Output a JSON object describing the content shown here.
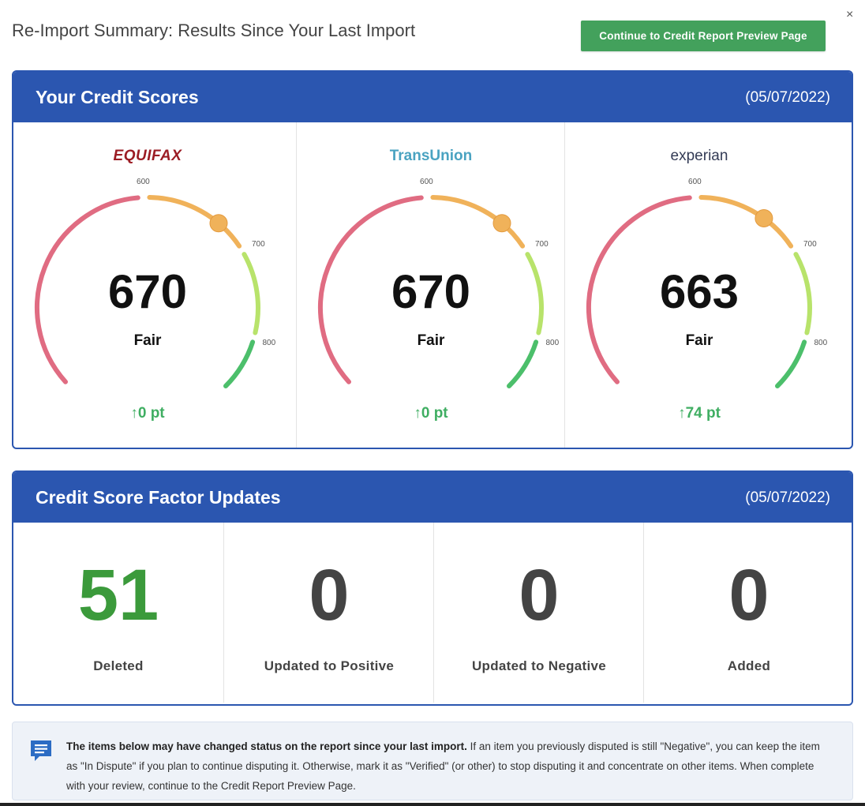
{
  "header": {
    "title": "Re-Import Summary: Results Since Your Last Import",
    "continue_label": "Continue to Credit Report Preview Page",
    "close_label": "×"
  },
  "scores_panel": {
    "title": "Your Credit Scores",
    "date": "(05/07/2022)",
    "ticks": [
      "600",
      "700",
      "800"
    ],
    "bureaus": [
      {
        "name": "EQUIFAX",
        "score": "670",
        "score_value": 670,
        "rating": "Fair",
        "change": "0 pt"
      },
      {
        "name": "TransUnion",
        "score": "670",
        "score_value": 670,
        "rating": "Fair",
        "change": "0 pt"
      },
      {
        "name": "experian",
        "score": "663",
        "score_value": 663,
        "rating": "Fair",
        "change": "74 pt"
      }
    ]
  },
  "factors_panel": {
    "title": "Credit Score Factor Updates",
    "date": "(05/07/2022)",
    "items": [
      {
        "value": "51",
        "label": "Deleted"
      },
      {
        "value": "0",
        "label": "Updated to Positive"
      },
      {
        "value": "0",
        "label": "Updated to Negative"
      },
      {
        "value": "0",
        "label": "Added"
      }
    ]
  },
  "info": {
    "bold_text": "The items below may have changed status on the report since your last import.",
    "text": " If an item you previously disputed is still \"Negative\", you can keep the item as \"In Dispute\" if you plan to continue disputing it. Otherwise, mark it as \"Verified\" (or other) to stop disputing it and concentrate on other items. When complete with your review, continue to the Credit Report Preview Page."
  },
  "colors": {
    "accent": "#2b56b0",
    "button": "#43a15c",
    "arc_poor": "#e06c82",
    "arc_fair": "#f0b25a",
    "arc_good": "#b8e36b",
    "arc_excellent": "#4cbf6b",
    "up_arrow": "#3fae62",
    "deleted": "#3b9a3b"
  }
}
